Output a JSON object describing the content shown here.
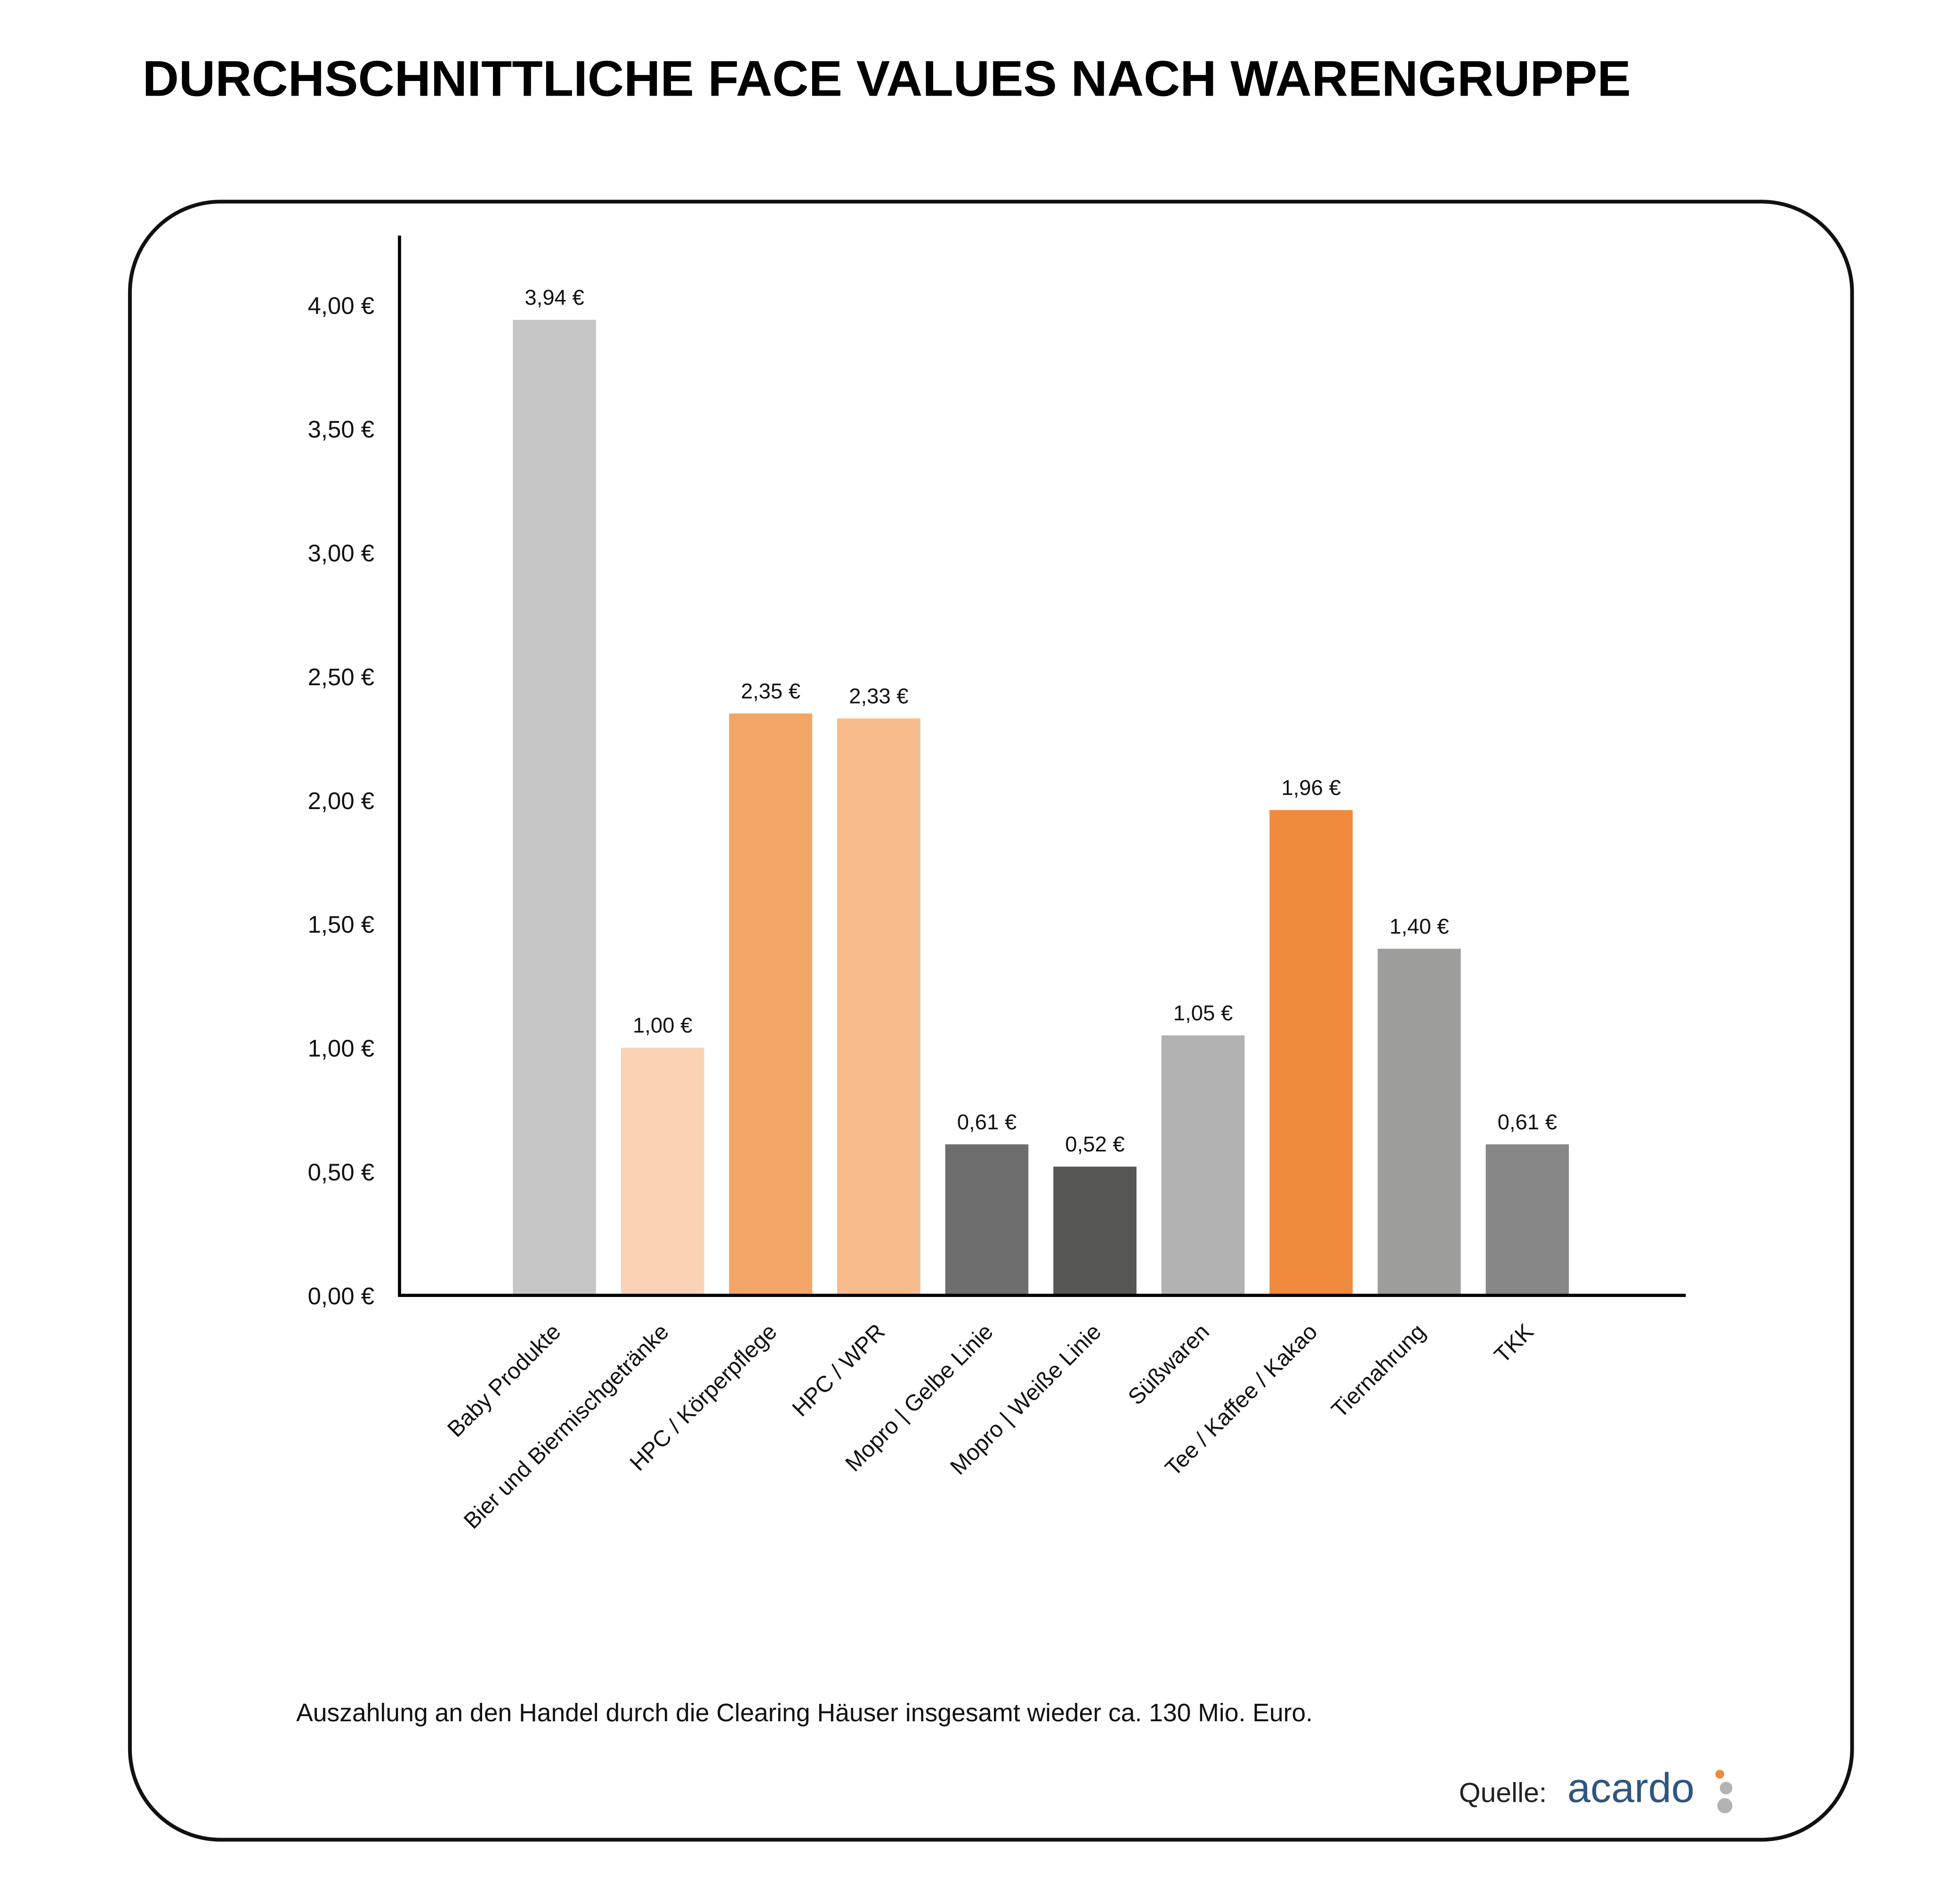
{
  "title": "DURCHSCHNITTLICHE FACE VALUES NACH WARENGRUPPE",
  "footnote": "Auszahlung an den Handel durch die Clearing Häuser insgesamt wieder ca. 130 Mio. Euro.",
  "source": {
    "label": "Quelle:",
    "logo_text": "acardo",
    "logo_color": "#2f5680",
    "dot_colors": [
      "#f08a3c",
      "#b3b3b3",
      "#b3b3b3"
    ]
  },
  "chart_data": {
    "type": "bar",
    "title": "DURCHSCHNITTLICHE FACE VALUES NACH WARENGRUPPE",
    "xlabel": "",
    "ylabel": "",
    "ylim": [
      0,
      4.25
    ],
    "grid": false,
    "yticks": [
      0,
      0.5,
      1,
      1.5,
      2,
      2.5,
      3,
      3.5,
      4
    ],
    "ytick_labels": [
      "0,00 €",
      "0,50 €",
      "1,00 €",
      "1,50 €",
      "2,00 €",
      "2,50 €",
      "3,00 €",
      "3,50 €",
      "4,00 €"
    ],
    "categories": [
      "Baby Produkte",
      "Bier und Biermischgetränke",
      "HPC / Körperpflege",
      "HPC / WPR",
      "Mopro | Gelbe Linie",
      "Mopro | Weiße Linie",
      "Süßwaren",
      "Tee / Kaffee / Kakao",
      "Tiernahrung",
      "TKK"
    ],
    "values": [
      3.94,
      1.0,
      2.35,
      2.33,
      0.61,
      0.52,
      1.05,
      1.96,
      1.4,
      0.61
    ],
    "data_labels": [
      "3,94 €",
      "1,00 €",
      "2,35 €",
      "2,33 €",
      "0,61 €",
      "0,52 €",
      "1,05 €",
      "1,96 €",
      "1,40 €",
      "0,61 €"
    ],
    "colors": [
      "#c6c6c6",
      "#fad3b4",
      "#f2a566",
      "#f7bb8c",
      "#6e6e6e",
      "#575756",
      "#b2b2b2",
      "#f08a3c",
      "#9d9d9c",
      "#878787"
    ]
  }
}
